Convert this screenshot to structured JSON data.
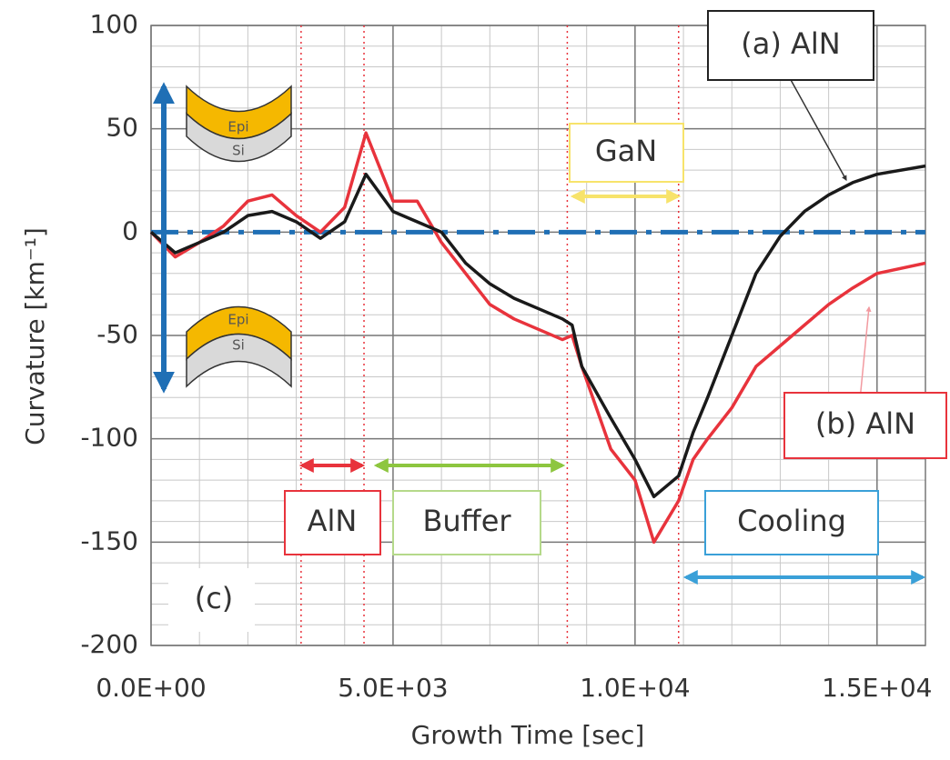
{
  "chart_data": {
    "type": "line",
    "xlabel": "Growth Time [sec]",
    "ylabel": "Curvature [km⁻¹]",
    "x": [
      0,
      500,
      1000,
      1500,
      2000,
      2500,
      3000,
      3500,
      4000,
      4440,
      5000,
      5500,
      6000,
      6500,
      7000,
      7500,
      8000,
      8500,
      8700,
      8900,
      9500,
      10000,
      10390,
      10900,
      11200,
      11500,
      12000,
      12500,
      13000,
      13500,
      14000,
      14500,
      15000,
      16000
    ],
    "series": [
      {
        "name": "(a) AlN",
        "color": "#1a1a1a",
        "values": [
          0,
          -10,
          -5,
          0,
          8,
          10,
          5,
          -3,
          5,
          28,
          10,
          5,
          0,
          -15,
          -25,
          -32,
          -37,
          -42,
          -45,
          -65,
          -90,
          -110,
          -128,
          -118,
          -97,
          -80,
          -50,
          -20,
          -2,
          10,
          18,
          24,
          28,
          32
        ]
      },
      {
        "name": "(b) AlN",
        "color": "#e8333c",
        "values": [
          0,
          -12,
          -5,
          3,
          15,
          18,
          8,
          0,
          12,
          48,
          15,
          15,
          -5,
          -20,
          -35,
          -42,
          -47,
          -52,
          -50,
          -65,
          -105,
          -120,
          -150,
          -130,
          -110,
          -100,
          -85,
          -65,
          -55,
          -45,
          -35,
          -27,
          -20,
          -15
        ]
      }
    ],
    "xlim": [
      0,
      16000
    ],
    "ylim": [
      -200,
      100
    ],
    "xticks": [
      {
        "value": 0,
        "label": "0.0E+00"
      },
      {
        "value": 5000,
        "label": "5.0E+03"
      },
      {
        "value": 10000,
        "label": "1.0E+04"
      },
      {
        "value": 15000,
        "label": "1.5E+04"
      }
    ],
    "yticks": [
      100,
      50,
      0,
      -50,
      -100,
      -150,
      -200
    ],
    "grid": true,
    "minor_grid": {
      "x_step": 1000,
      "y_step": 10
    },
    "reference_line": 0,
    "phase_boundaries": [
      3100,
      4400,
      8600,
      10900
    ],
    "annotations": {
      "phases": [
        "AlN",
        "Buffer",
        "GaN",
        "Cooling"
      ],
      "panel": "(c)",
      "layers": [
        "Epi",
        "Si",
        "Epi",
        "Si"
      ]
    }
  }
}
